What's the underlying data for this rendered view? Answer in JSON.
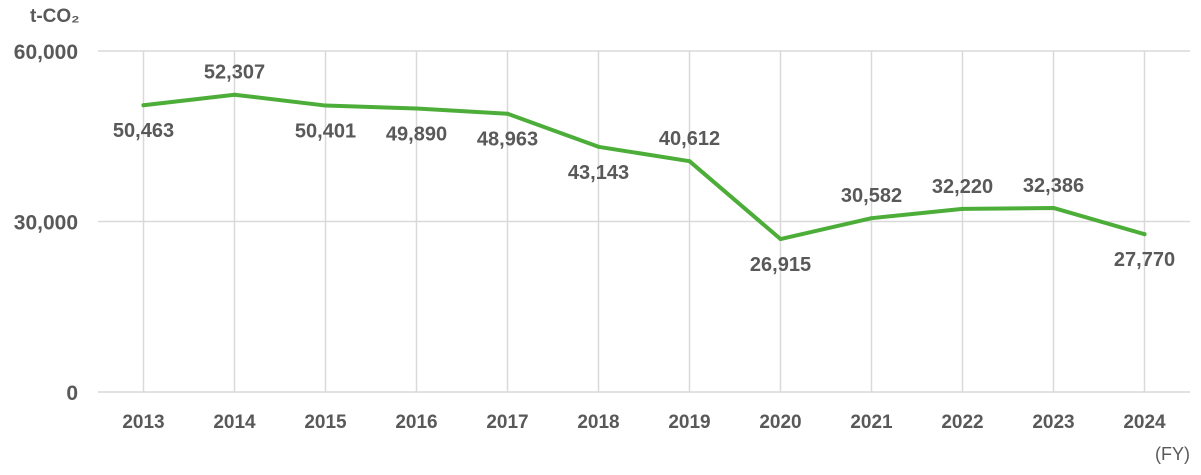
{
  "chart_data": {
    "type": "line",
    "y_unit": "t-CO₂",
    "x_unit": "(FY)",
    "categories": [
      "2013",
      "2014",
      "2015",
      "2016",
      "2017",
      "2018",
      "2019",
      "2020",
      "2021",
      "2022",
      "2023",
      "2024"
    ],
    "series": [
      {
        "values": [
          50463,
          52307,
          50401,
          49890,
          48963,
          43143,
          40612,
          26915,
          30582,
          32220,
          32386,
          27770
        ],
        "labels": [
          "50,463",
          "52,307",
          "50,401",
          "49,890",
          "48,963",
          "43,143",
          "40,612",
          "26,915",
          "30,582",
          "32,220",
          "32,386",
          "27,770"
        ],
        "color": "#4cae39"
      }
    ],
    "ylim": [
      0,
      60000
    ],
    "yticks": [
      0,
      30000,
      60000
    ],
    "ytick_labels": [
      "0",
      "30,000",
      "60,000"
    ],
    "grid": true,
    "gridline_color": "#d9d9d9",
    "text_color": "#595959"
  }
}
